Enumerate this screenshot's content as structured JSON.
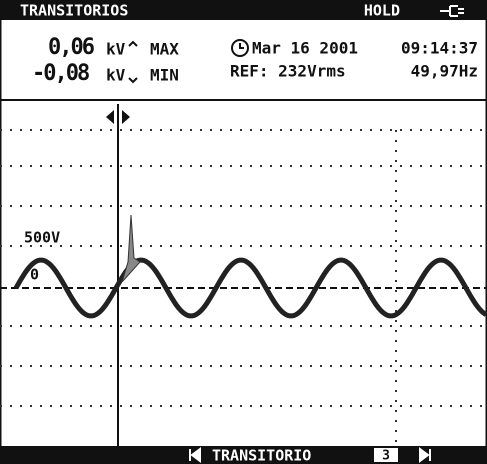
{
  "header": {
    "title": "TRANSITORIOS",
    "status": "HOLD"
  },
  "readings": [
    {
      "value": "0,06",
      "unit": "kV",
      "label": "MAX"
    },
    {
      "value": "-0,08",
      "unit": "kV",
      "label": "MIN"
    }
  ],
  "date": "Mar 16 2001",
  "time": "09:14:37",
  "reference": "REF: 232Vrms",
  "frequency": "49,97Hz",
  "scale_label": "500V",
  "zero_label": "0",
  "footer": {
    "label": "TRANSITORIO",
    "index": "3"
  }
}
